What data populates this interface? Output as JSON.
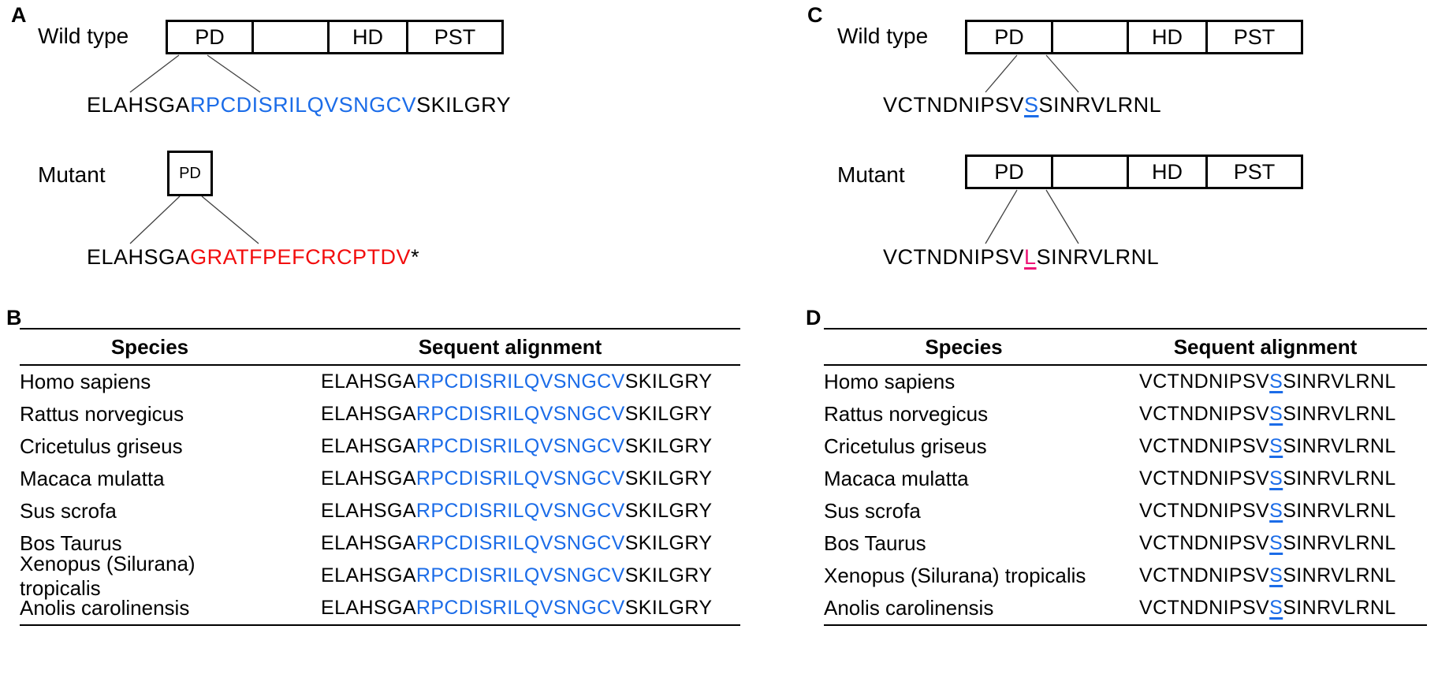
{
  "colors": {
    "highlight_blue": "#1b6ce8",
    "mutant_red": "#f20d0d",
    "mutant_pink": "#ee1577",
    "text": "#000000",
    "background": "#ffffff"
  },
  "panel_a": {
    "label": "A",
    "wild_type": {
      "name": "Wild type",
      "domains": [
        "PD",
        "",
        "HD",
        "PST"
      ],
      "sequence": {
        "prefix": "ELAHSGA",
        "highlight": "RPCDISRILQVSNGCV",
        "suffix": "SKILGRY"
      }
    },
    "mutant": {
      "name": "Mutant",
      "domains": [
        "PD"
      ],
      "sequence": {
        "prefix": "ELAHSGA",
        "highlight": "GRATFPEFCRCPTDV",
        "suffix": "*"
      }
    }
  },
  "panel_b": {
    "label": "B",
    "columns": [
      "Species",
      "Sequent alignment"
    ],
    "highlight_underlined": false,
    "rows": [
      {
        "species": "Homo sapiens",
        "sequence": {
          "prefix": "ELAHSGA",
          "highlight": "RPCDISRILQVSNGCV",
          "suffix": "SKILGRY"
        }
      },
      {
        "species": "Rattus norvegicus",
        "sequence": {
          "prefix": "ELAHSGA",
          "highlight": "RPCDISRILQVSNGCV",
          "suffix": "SKILGRY"
        }
      },
      {
        "species": "Cricetulus griseus",
        "sequence": {
          "prefix": "ELAHSGA",
          "highlight": "RPCDISRILQVSNGCV",
          "suffix": "SKILGRY"
        }
      },
      {
        "species": "Macaca mulatta",
        "sequence": {
          "prefix": "ELAHSGA",
          "highlight": "RPCDISRILQVSNGCV",
          "suffix": "SKILGRY"
        }
      },
      {
        "species": "Sus scrofa",
        "sequence": {
          "prefix": "ELAHSGA",
          "highlight": "RPCDISRILQVSNGCV",
          "suffix": "SKILGRY"
        }
      },
      {
        "species": "Bos Taurus",
        "sequence": {
          "prefix": "ELAHSGA",
          "highlight": "RPCDISRILQVSNGCV",
          "suffix": "SKILGRY"
        }
      },
      {
        "species": "Xenopus (Silurana) tropicalis",
        "sequence": {
          "prefix": "ELAHSGA",
          "highlight": "RPCDISRILQVSNGCV",
          "suffix": "SKILGRY"
        }
      },
      {
        "species": "Anolis carolinensis",
        "sequence": {
          "prefix": "ELAHSGA",
          "highlight": "RPCDISRILQVSNGCV",
          "suffix": "SKILGRY"
        }
      }
    ]
  },
  "panel_c": {
    "label": "C",
    "wild_type": {
      "name": "Wild type",
      "domains": [
        "PD",
        "",
        "HD",
        "PST"
      ],
      "sequence": {
        "prefix": "VCTNDNIPSV",
        "highlight": "S",
        "suffix": "SINRVLRNL",
        "highlight_underlined": true
      }
    },
    "mutant": {
      "name": "Mutant",
      "domains": [
        "PD",
        "",
        "HD",
        "PST"
      ],
      "sequence": {
        "prefix": "VCTNDNIPSV",
        "highlight": "L",
        "suffix": "SINRVLRNL",
        "highlight_underlined": true
      }
    }
  },
  "panel_d": {
    "label": "D",
    "columns": [
      "Species",
      "Sequent alignment"
    ],
    "highlight_underlined": true,
    "rows": [
      {
        "species": "Homo sapiens",
        "sequence": {
          "prefix": "VCTNDNIPSV",
          "highlight": "S",
          "suffix": "SINRVLRNL"
        }
      },
      {
        "species": "Rattus norvegicus",
        "sequence": {
          "prefix": "VCTNDNIPSV",
          "highlight": "S",
          "suffix": "SINRVLRNL"
        }
      },
      {
        "species": "Cricetulus griseus",
        "sequence": {
          "prefix": "VCTNDNIPSV",
          "highlight": "S",
          "suffix": "SINRVLRNL"
        }
      },
      {
        "species": "Macaca mulatta",
        "sequence": {
          "prefix": "VCTNDNIPSV",
          "highlight": "S",
          "suffix": "SINRVLRNL"
        }
      },
      {
        "species": "Sus scrofa",
        "sequence": {
          "prefix": "VCTNDNIPSV",
          "highlight": "S",
          "suffix": "SINRVLRNL"
        }
      },
      {
        "species": "Bos Taurus",
        "sequence": {
          "prefix": "VCTNDNIPSV",
          "highlight": "S",
          "suffix": "SINRVLRNL"
        }
      },
      {
        "species": "Xenopus (Silurana) tropicalis",
        "sequence": {
          "prefix": "VCTNDNIPSV",
          "highlight": "S",
          "suffix": "SINRVLRNL"
        }
      },
      {
        "species": "Anolis carolinensis",
        "sequence": {
          "prefix": "VCTNDNIPSV",
          "highlight": "S",
          "suffix": "SINRVLRNL"
        }
      }
    ]
  }
}
